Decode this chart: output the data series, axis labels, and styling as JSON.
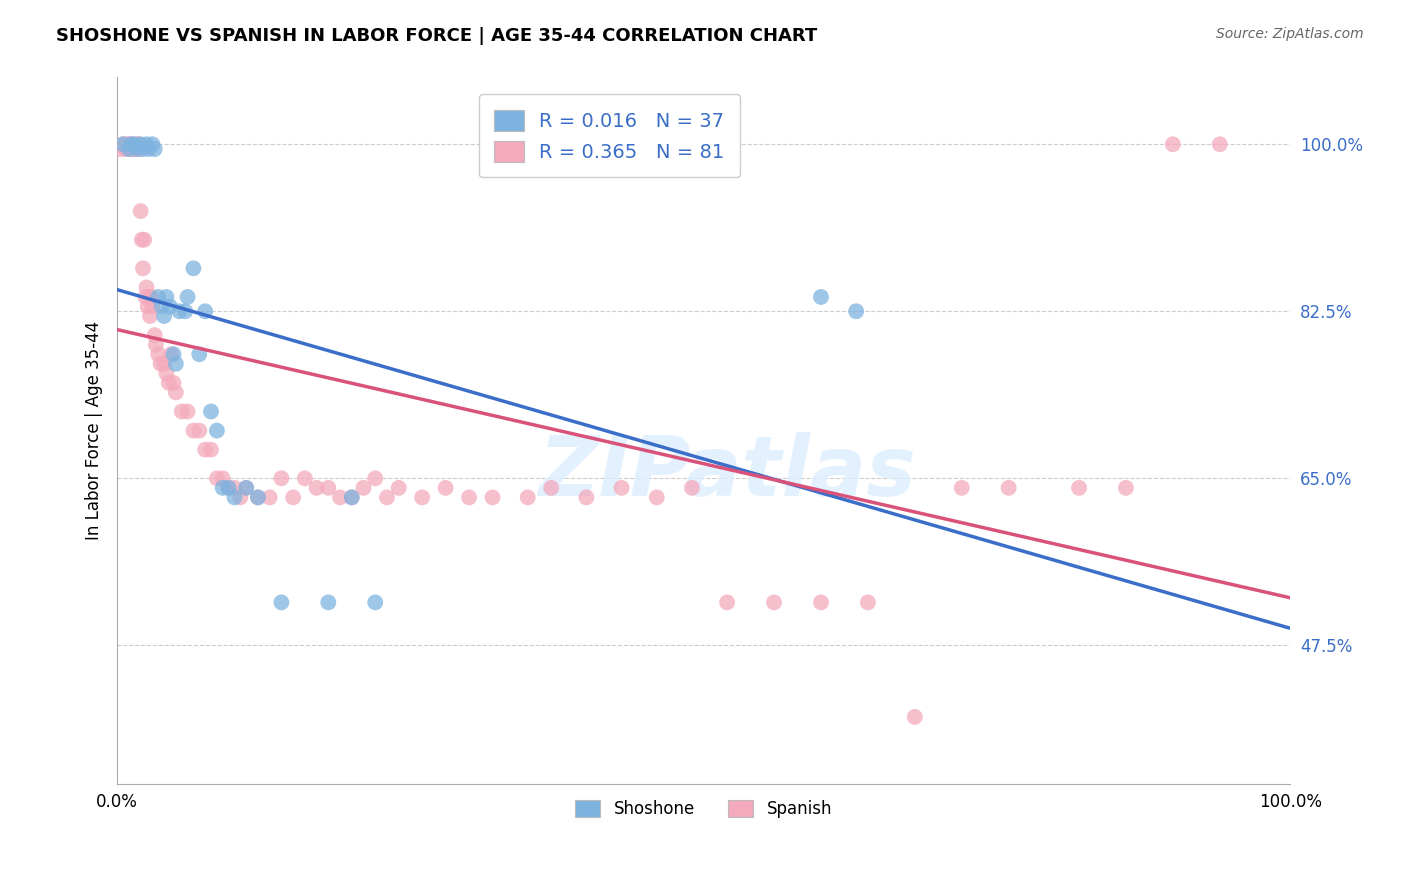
{
  "title": "SHOSHONE VS SPANISH IN LABOR FORCE | AGE 35-44 CORRELATION CHART",
  "source": "Source: ZipAtlas.com",
  "ylabel": "In Labor Force | Age 35-44",
  "xlim": [
    0.0,
    1.0
  ],
  "ylim": [
    0.33,
    1.07
  ],
  "yticks": [
    0.475,
    0.65,
    0.825,
    1.0
  ],
  "ytick_labels": [
    "47.5%",
    "65.0%",
    "82.5%",
    "100.0%"
  ],
  "xticks": [
    0.0,
    1.0
  ],
  "xtick_labels": [
    "0.0%",
    "100.0%"
  ],
  "blue_color": "#7EB3E0",
  "pink_color": "#F4AABC",
  "blue_line_color": "#3B6EC8",
  "pink_line_color": "#D9527A",
  "legend_label_shoshone": "Shoshone",
  "legend_label_spanish": "Spanish",
  "watermark_text": "ZIPatlas",
  "blue_R": 0.016,
  "blue_N": 37,
  "pink_R": 0.365,
  "pink_N": 81,
  "blue_scatter_x": [
    0.005,
    0.01,
    0.012,
    0.015,
    0.017,
    0.02,
    0.022,
    0.025,
    0.027,
    0.03,
    0.032,
    0.035,
    0.038,
    0.04,
    0.042,
    0.045,
    0.048,
    0.05,
    0.053,
    0.058,
    0.06,
    0.065,
    0.07,
    0.075,
    0.08,
    0.085,
    0.09,
    0.095,
    0.1,
    0.11,
    0.12,
    0.14,
    0.18,
    0.2,
    0.22,
    0.6,
    0.63
  ],
  "blue_scatter_y": [
    1.0,
    0.995,
    1.0,
    1.0,
    0.995,
    1.0,
    0.995,
    1.0,
    0.995,
    1.0,
    0.995,
    0.84,
    0.83,
    0.82,
    0.84,
    0.83,
    0.78,
    0.77,
    0.825,
    0.825,
    0.84,
    0.87,
    0.78,
    0.825,
    0.72,
    0.7,
    0.64,
    0.64,
    0.63,
    0.64,
    0.63,
    0.52,
    0.52,
    0.63,
    0.52,
    0.84,
    0.825
  ],
  "pink_scatter_x": [
    0.003,
    0.005,
    0.007,
    0.008,
    0.009,
    0.01,
    0.011,
    0.012,
    0.013,
    0.015,
    0.016,
    0.017,
    0.018,
    0.019,
    0.02,
    0.021,
    0.022,
    0.023,
    0.024,
    0.025,
    0.026,
    0.027,
    0.028,
    0.029,
    0.03,
    0.032,
    0.033,
    0.035,
    0.037,
    0.04,
    0.042,
    0.044,
    0.046,
    0.048,
    0.05,
    0.055,
    0.06,
    0.065,
    0.07,
    0.075,
    0.08,
    0.085,
    0.09,
    0.095,
    0.1,
    0.105,
    0.11,
    0.12,
    0.13,
    0.14,
    0.15,
    0.16,
    0.17,
    0.18,
    0.19,
    0.2,
    0.21,
    0.22,
    0.23,
    0.24,
    0.26,
    0.28,
    0.3,
    0.32,
    0.35,
    0.37,
    0.4,
    0.43,
    0.46,
    0.49,
    0.52,
    0.56,
    0.6,
    0.64,
    0.68,
    0.72,
    0.76,
    0.82,
    0.86,
    0.9,
    0.94
  ],
  "pink_scatter_y": [
    0.995,
    1.0,
    0.995,
    1.0,
    0.995,
    1.0,
    0.995,
    1.0,
    0.995,
    0.995,
    1.0,
    0.995,
    1.0,
    0.995,
    0.93,
    0.9,
    0.87,
    0.9,
    0.84,
    0.85,
    0.83,
    0.84,
    0.82,
    0.84,
    0.83,
    0.8,
    0.79,
    0.78,
    0.77,
    0.77,
    0.76,
    0.75,
    0.78,
    0.75,
    0.74,
    0.72,
    0.72,
    0.7,
    0.7,
    0.68,
    0.68,
    0.65,
    0.65,
    0.64,
    0.64,
    0.63,
    0.64,
    0.63,
    0.63,
    0.65,
    0.63,
    0.65,
    0.64,
    0.64,
    0.63,
    0.63,
    0.64,
    0.65,
    0.63,
    0.64,
    0.63,
    0.64,
    0.63,
    0.63,
    0.63,
    0.64,
    0.63,
    0.64,
    0.63,
    0.64,
    0.52,
    0.52,
    0.52,
    0.52,
    0.4,
    0.64,
    0.64,
    0.64,
    0.64,
    1.0,
    1.0
  ]
}
